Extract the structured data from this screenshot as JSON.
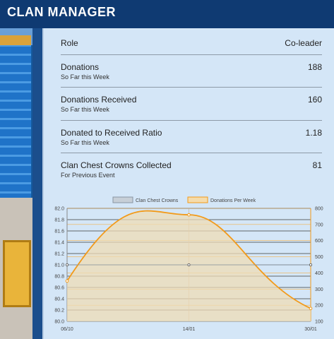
{
  "app": {
    "title": "CLAN MANAGER"
  },
  "stats": {
    "role": {
      "label": "Role",
      "value": "Co-leader"
    },
    "rows": [
      {
        "label": "Donations",
        "sub": "So Far this Week",
        "value": "188"
      },
      {
        "label": "Donations Received",
        "sub": "So Far this Week",
        "value": "160"
      },
      {
        "label": "Donated to Received Ratio",
        "sub": "So Far this Week",
        "value": "1.18"
      },
      {
        "label": "Clan Chest Crowns Collected",
        "sub": "For Previous Event",
        "value": "81"
      }
    ]
  },
  "colors": {
    "primary": "#0f3a72",
    "panel": "#d4e6f7",
    "crowns_series": "#b9c4cf",
    "donations_series": "#f29a1a"
  },
  "chart_data": {
    "type": "line",
    "categories": [
      "06/10",
      "14/01",
      "30/01"
    ],
    "legend": [
      "Clan Chest Crowns",
      "Donations Per Week"
    ],
    "legend_placement": "top-center",
    "grid": true,
    "y_left": {
      "min": 80.0,
      "max": 82.0,
      "ticks": [
        "82.0",
        "81.8",
        "81.6",
        "81.4",
        "81.2",
        "81.0",
        "80.8",
        "80.6",
        "80.4",
        "80.2",
        "80.0"
      ]
    },
    "y_right": {
      "min": 100,
      "max": 800,
      "ticks": [
        "800",
        "700",
        "600",
        "500",
        "400",
        "300",
        "200",
        "100"
      ]
    },
    "series": [
      {
        "name": "Clan Chest Crowns",
        "axis": "left",
        "values": [
          81.0,
          81.0,
          81.0
        ]
      },
      {
        "name": "Donations Per Week",
        "axis": "right",
        "values": [
          350,
          760,
          180
        ]
      }
    ]
  }
}
